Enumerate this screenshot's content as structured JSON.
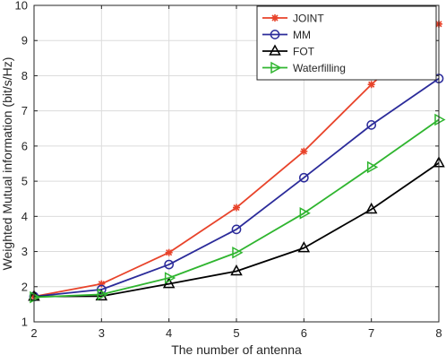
{
  "chart_data": {
    "type": "line",
    "xlabel": "The number of antenna",
    "ylabel": "Weighted Mutual information (bit/s/Hz)",
    "x": [
      2,
      3,
      4,
      5,
      6,
      7,
      8
    ],
    "xlim": [
      2,
      8
    ],
    "ylim": [
      1,
      10
    ],
    "xticks": [
      "2",
      "3",
      "4",
      "5",
      "6",
      "7",
      "8"
    ],
    "yticks": [
      "1",
      "2",
      "3",
      "4",
      "5",
      "6",
      "7",
      "8",
      "9",
      "10"
    ],
    "grid": true,
    "legend_position": "top-right",
    "series": [
      {
        "name": "JOINT",
        "color": "#e8432a",
        "marker": "asterisk",
        "values": [
          1.72,
          2.08,
          2.97,
          4.25,
          5.85,
          7.75,
          9.47
        ]
      },
      {
        "name": "MM",
        "color": "#2b2b9a",
        "marker": "circle",
        "values": [
          1.72,
          1.92,
          2.63,
          3.63,
          5.1,
          6.6,
          7.92
        ]
      },
      {
        "name": "FOT",
        "color": "#000000",
        "marker": "triangle-up",
        "values": [
          1.72,
          1.73,
          2.08,
          2.44,
          3.1,
          4.2,
          5.52
        ]
      },
      {
        "name": "Waterfilling",
        "color": "#2fb52f",
        "marker": "triangle-right",
        "values": [
          1.7,
          1.78,
          2.25,
          2.97,
          4.09,
          5.4,
          6.75
        ]
      }
    ]
  }
}
